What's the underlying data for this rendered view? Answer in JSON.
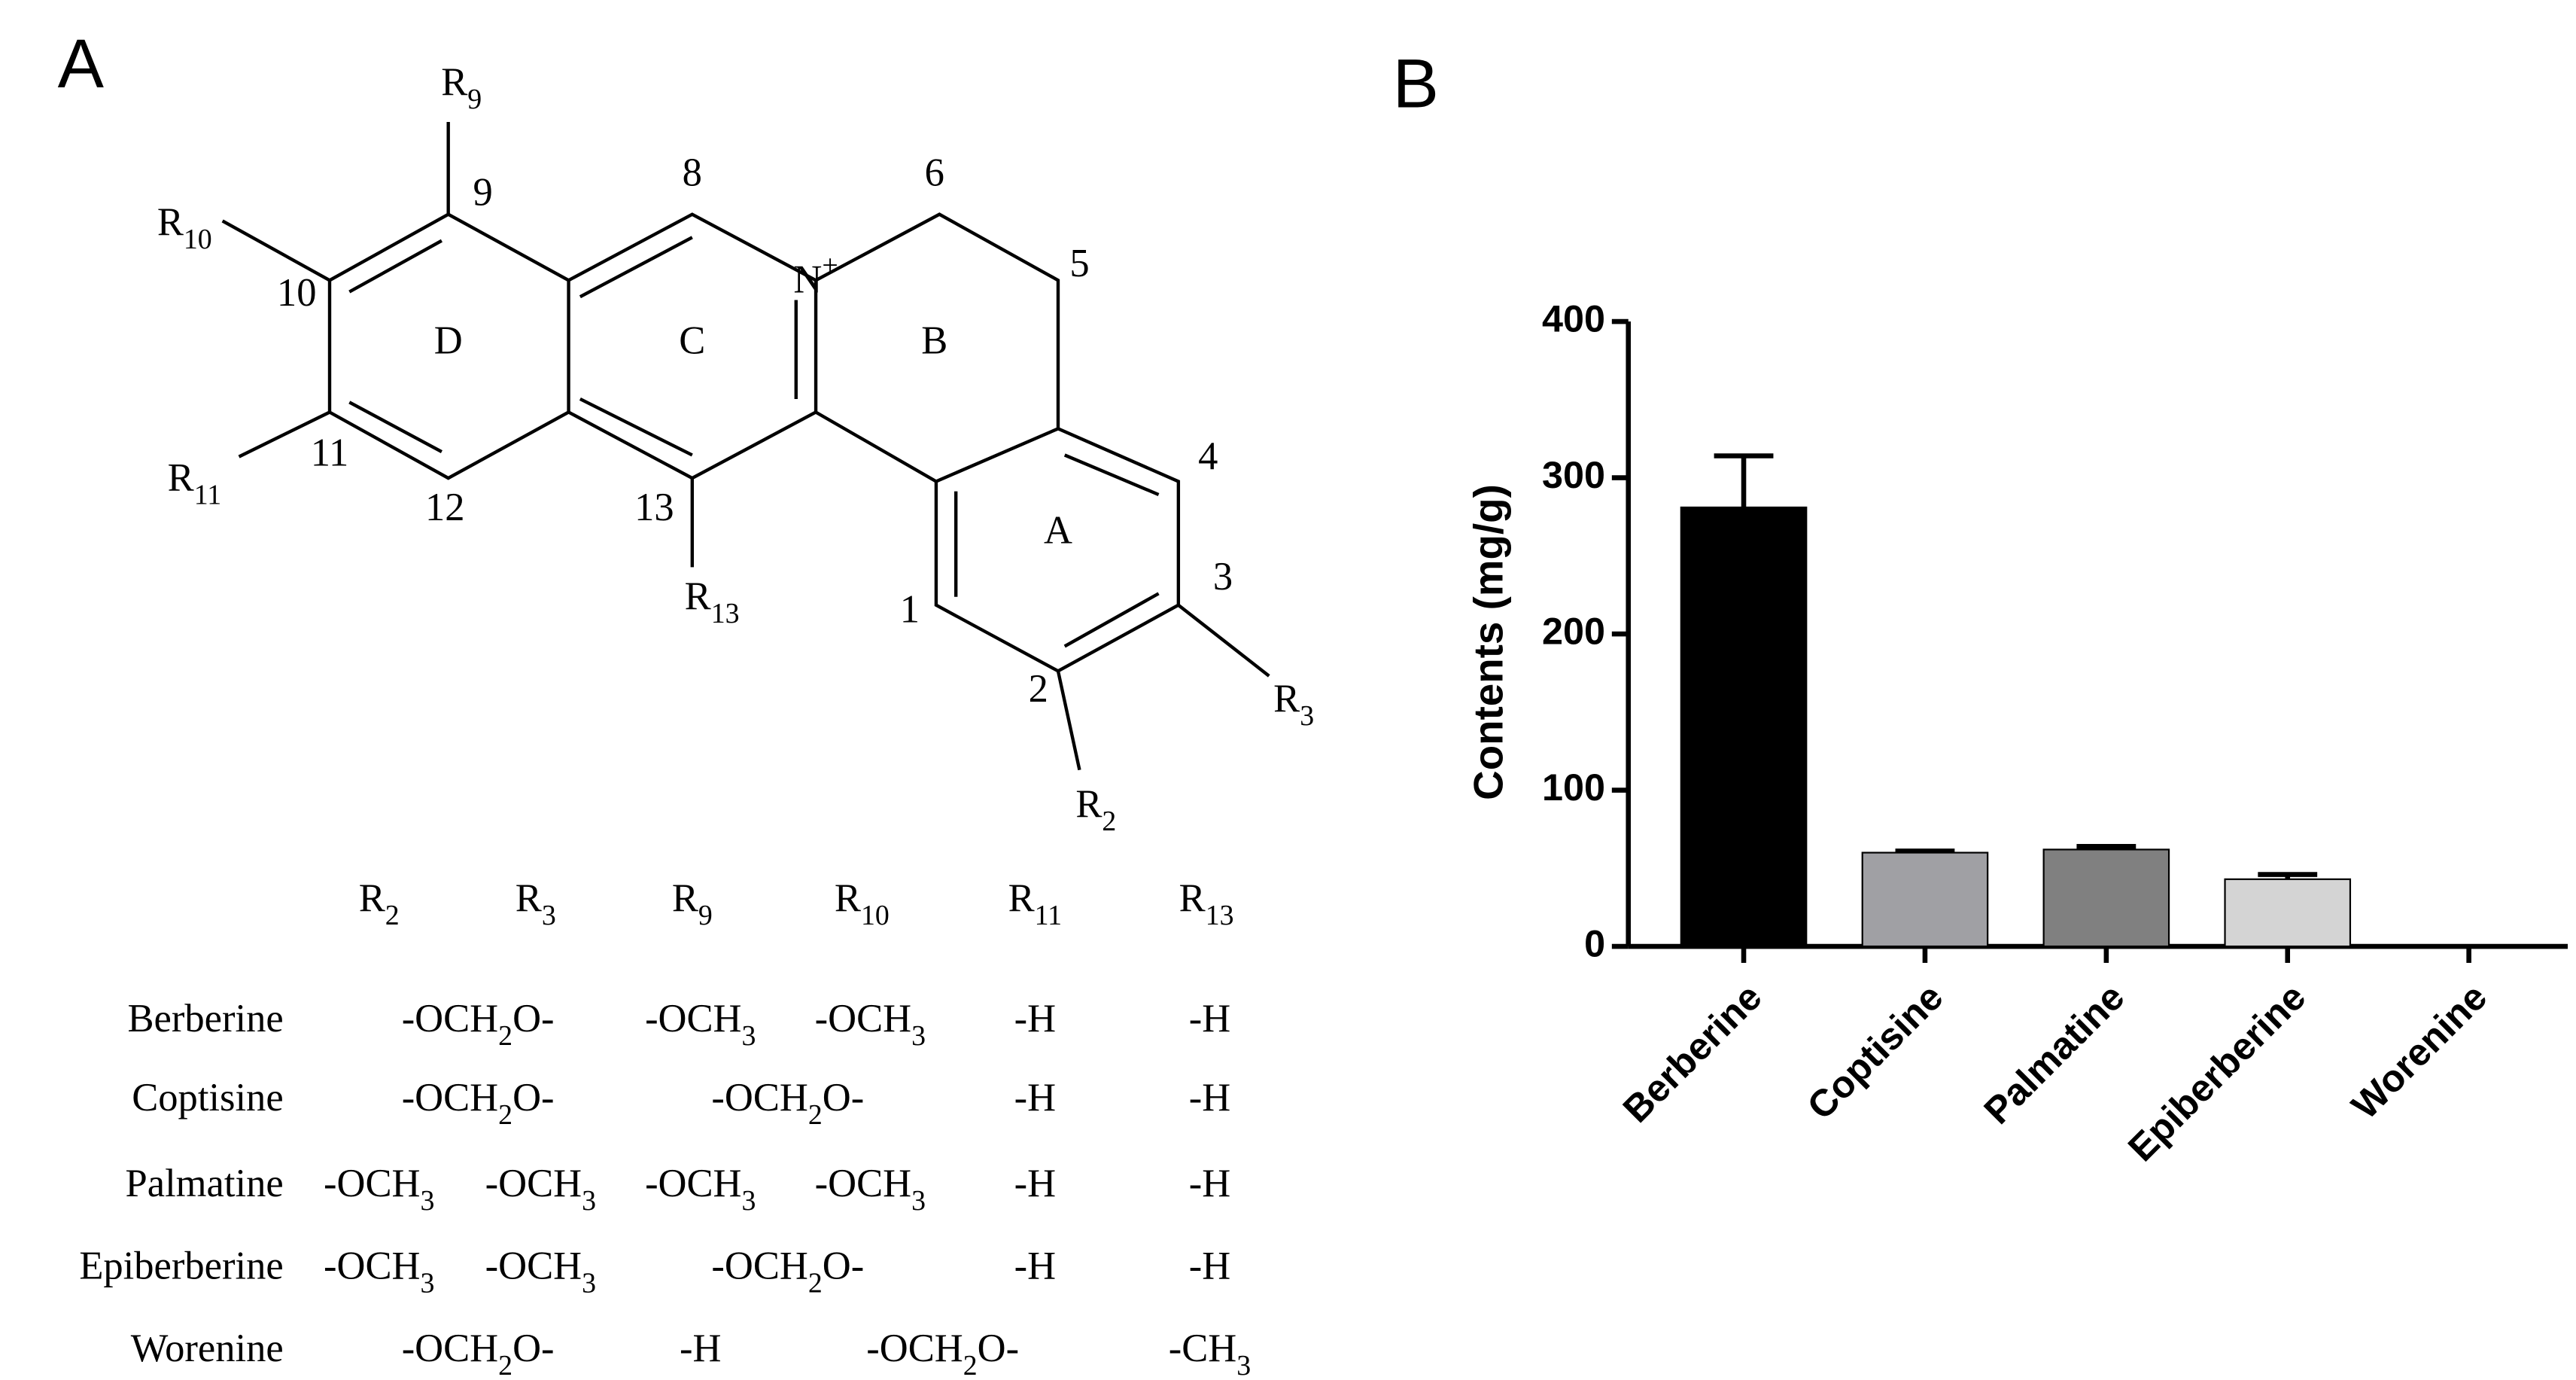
{
  "panel_labels": [
    "A",
    "B"
  ],
  "structure": {
    "atom_labels": [
      "N+",
      "R9",
      "R10",
      "R11",
      "R13",
      "R2",
      "R3"
    ],
    "ring_labels": [
      "D",
      "C",
      "B",
      "A"
    ],
    "position_numbers": [
      "9",
      "8",
      "6",
      "5",
      "10",
      "11",
      "12",
      "13",
      "4",
      "3",
      "1",
      "2"
    ]
  },
  "table": {
    "header": [
      "R2",
      "R3",
      "R9",
      "R10",
      "R11",
      "R13"
    ],
    "rows": [
      {
        "name": "Berberine",
        "cells": [
          "-OCH2O-",
          "-OCH3",
          "-OCH3",
          "-H",
          "-H"
        ]
      },
      {
        "name": "Coptisine",
        "cells": [
          "-OCH2O-",
          "-OCH2O-",
          "-H",
          "-H"
        ]
      },
      {
        "name": "Palmatine",
        "cells": [
          "-OCH3",
          "-OCH3",
          "-OCH3",
          "-OCH3",
          "-H",
          "-H"
        ]
      },
      {
        "name": "Epiberberine",
        "cells": [
          "-OCH3",
          "-OCH3",
          "-OCH2O-",
          "-H",
          "-H"
        ]
      },
      {
        "name": "Worenine",
        "cells": [
          "-OCH2O-",
          "-H",
          "-OCH2O-",
          "-CH3"
        ]
      }
    ]
  },
  "chart_data": {
    "type": "bar",
    "y_label": "Contents (mg/g)",
    "categories": [
      "Berberine",
      "Coptisine",
      "Palmatine",
      "Epiberberine",
      "Worenine"
    ],
    "values": [
      281,
      60,
      62,
      43,
      0
    ],
    "errors": [
      33,
      1,
      2,
      3,
      0
    ],
    "colors": [
      "#000000",
      "#a0a0a4",
      "#808080",
      "#d4d4d4",
      "#ffffff"
    ],
    "ylim": [
      0,
      400
    ],
    "yticks": [
      0,
      100,
      200,
      300,
      400
    ]
  }
}
